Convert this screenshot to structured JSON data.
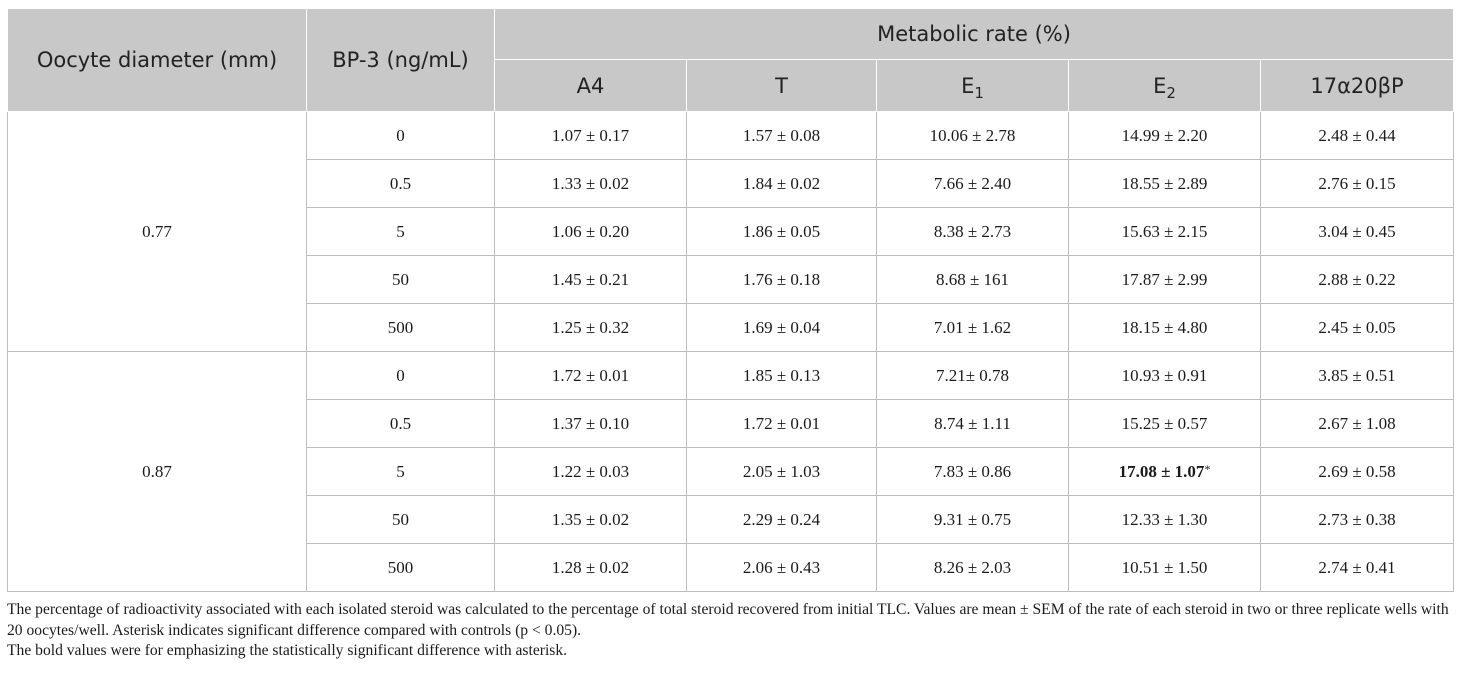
{
  "table": {
    "headers": {
      "oocyte_diameter": "Oocyte diameter (mm)",
      "bp3": "BP-3 (ng/mL)",
      "metabolic_rate": "Metabolic rate (%)",
      "columns": [
        {
          "base": "A4",
          "sub": ""
        },
        {
          "base": "T",
          "sub": ""
        },
        {
          "base": "E",
          "sub": "1"
        },
        {
          "base": "E",
          "sub": "2"
        },
        {
          "base": "17α20βP",
          "sub": ""
        }
      ]
    },
    "groups": [
      {
        "diameter": "0.77",
        "rows": [
          {
            "bp3": "0",
            "values": [
              "1.07 ± 0.17",
              "1.57 ± 0.08",
              "10.06 ± 2.78",
              "14.99 ± 2.20",
              "2.48 ± 0.44"
            ]
          },
          {
            "bp3": "0.5",
            "values": [
              "1.33 ± 0.02",
              "1.84 ± 0.02",
              "7.66 ± 2.40",
              "18.55 ± 2.89",
              "2.76 ± 0.15"
            ]
          },
          {
            "bp3": "5",
            "values": [
              "1.06 ± 0.20",
              "1.86 ± 0.05",
              "8.38 ± 2.73",
              "15.63 ± 2.15",
              "3.04 ± 0.45"
            ]
          },
          {
            "bp3": "50",
            "values": [
              "1.45 ± 0.21",
              "1.76 ± 0.18",
              "8.68 ± 161",
              "17.87 ± 2.99",
              "2.88 ± 0.22"
            ]
          },
          {
            "bp3": "500",
            "values": [
              "1.25 ± 0.32",
              "1.69 ± 0.04",
              "7.01 ± 1.62",
              "18.15 ± 4.80",
              "2.45 ± 0.05"
            ]
          }
        ]
      },
      {
        "diameter": "0.87",
        "rows": [
          {
            "bp3": "0",
            "values": [
              "1.72 ± 0.01",
              "1.85 ± 0.13",
              "7.21± 0.78",
              "10.93 ± 0.91",
              "3.85 ± 0.51"
            ]
          },
          {
            "bp3": "0.5",
            "values": [
              "1.37 ± 0.10",
              "1.72 ± 0.01",
              "8.74 ± 1.11",
              "15.25 ± 0.57",
              "2.67 ± 1.08"
            ]
          },
          {
            "bp3": "5",
            "values": [
              "1.22 ± 0.03",
              "2.05 ± 1.03",
              "7.83 ± 0.86",
              "17.08 ± 1.07",
              "2.69 ± 0.58"
            ],
            "bold_index": 3,
            "asterisk": "*"
          },
          {
            "bp3": "50",
            "values": [
              "1.35 ± 0.02",
              "2.29 ± 0.24",
              "9.31 ± 0.75",
              "12.33 ± 1.30",
              "2.73 ± 0.38"
            ]
          },
          {
            "bp3": "500",
            "values": [
              "1.28 ± 0.02",
              "2.06 ± 0.43",
              "8.26 ± 2.03",
              "10.51 ± 1.50",
              "2.74 ± 0.41"
            ]
          }
        ]
      }
    ]
  },
  "footnotes": [
    "The percentage of radioactivity associated with each isolated steroid was calculated to the percentage of total steroid recovered from initial TLC. Values are mean ± SEM of the rate of each steroid in two or three replicate wells with 20 oocytes/well. Asterisk indicates significant difference compared with controls (p < 0.05).",
    "The bold values were for emphasizing the statistically significant difference with asterisk."
  ]
}
